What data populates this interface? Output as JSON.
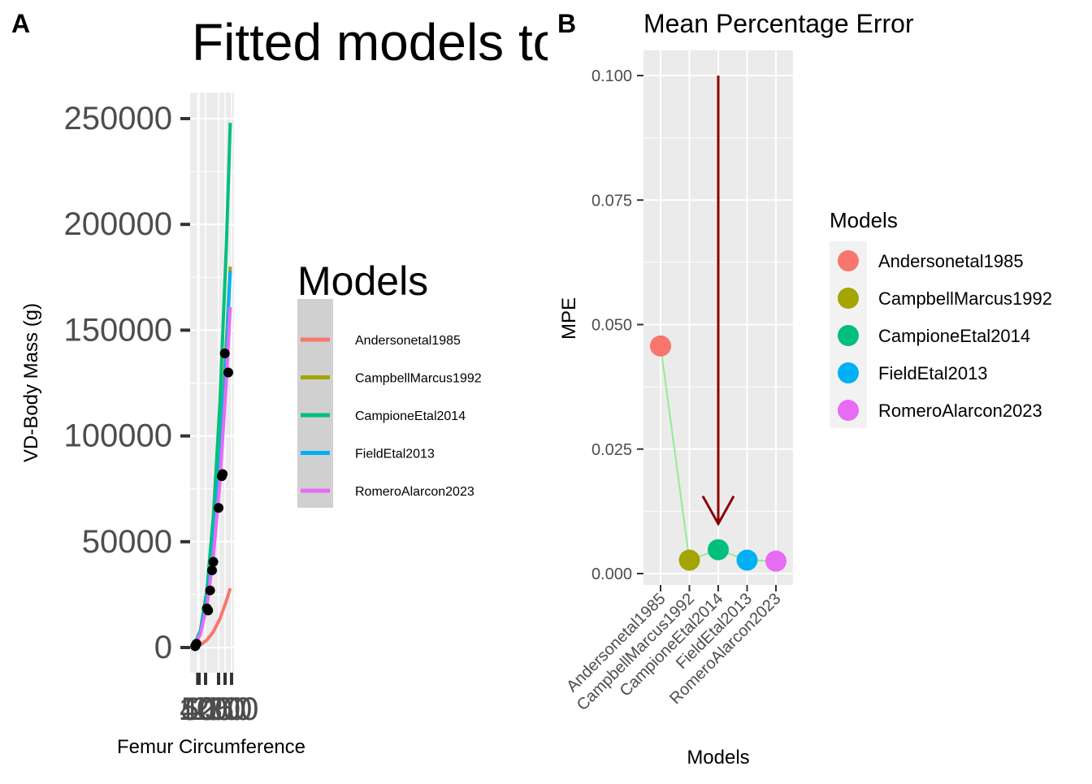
{
  "panel_labels": [
    "A",
    "B"
  ],
  "chart_data": [
    {
      "type": "line",
      "title": "Fitted models to",
      "xlabel": "Femur Circumference",
      "ylabel": "VD-Body Mass (g)",
      "xlim": [
        0,
        300
      ],
      "ylim": [
        0,
        250000
      ],
      "x_ticks": [
        40,
        50,
        100,
        200,
        250,
        300
      ],
      "x_tick_labels": [
        "40",
        "50",
        "100",
        "200",
        "250",
        "300"
      ],
      "y_ticks": [
        0,
        50000,
        100000,
        150000,
        200000,
        250000
      ],
      "y_tick_labels": [
        "0",
        "50000",
        "100000",
        "150000",
        "200000",
        "250000"
      ],
      "grid": true,
      "legend": {
        "title": "Models",
        "position": "right",
        "entries": [
          "Andersonetal1985",
          "CampbellMarcus1992",
          "CampioneEtal2014",
          "FieldEtal2013",
          "RomeroAlarcon2023"
        ]
      },
      "series": [
        {
          "name": "Andersonetal1985",
          "color": "#F8766D",
          "x": [
            10,
            60,
            110,
            160,
            210,
            260,
            290
          ],
          "y": [
            150,
            1200,
            3500,
            7500,
            13500,
            22000,
            28000
          ]
        },
        {
          "name": "CampbellMarcus1992",
          "color": "#A3A500",
          "x": [
            10,
            60,
            110,
            160,
            210,
            260,
            290
          ],
          "y": [
            800,
            7000,
            22000,
            50000,
            90000,
            145000,
            180000
          ]
        },
        {
          "name": "CampioneEtal2014",
          "color": "#00BF7D",
          "x": [
            10,
            60,
            110,
            160,
            210,
            260,
            290
          ],
          "y": [
            900,
            8000,
            27000,
            62000,
            115000,
            190000,
            248000
          ]
        },
        {
          "name": "FieldEtal2013",
          "color": "#00B0F6",
          "x": [
            10,
            60,
            110,
            160,
            210,
            260,
            290
          ],
          "y": [
            800,
            7000,
            21500,
            48000,
            87000,
            140000,
            178000
          ]
        },
        {
          "name": "RomeroAlarcon2023",
          "color": "#E76BF3",
          "x": [
            10,
            60,
            110,
            160,
            210,
            260,
            290
          ],
          "y": [
            700,
            6200,
            19500,
            43000,
            78000,
            126000,
            161000
          ]
        }
      ],
      "points": {
        "x": [
          20,
          25,
          30,
          110,
          120,
          135,
          150,
          160,
          200,
          225,
          232,
          248,
          275
        ],
        "y": [
          600,
          1200,
          1800,
          18500,
          17500,
          27000,
          36500,
          40500,
          66000,
          81000,
          82000,
          139000,
          130000
        ]
      }
    },
    {
      "type": "scatter",
      "title": "Mean Percentage Error",
      "xlabel": "Models",
      "ylabel": "MPE",
      "ylim": [
        -0.005,
        0.1025
      ],
      "y_ticks": [
        0.0,
        0.025,
        0.05,
        0.075,
        0.1
      ],
      "y_tick_labels": [
        "0.000",
        "0.025",
        "0.050",
        "0.075",
        "0.100"
      ],
      "grid": true,
      "categories": [
        "Andersonetal1985",
        "CampbellMarcus1992",
        "CampioneEtal2014",
        "FieldEtal2013",
        "RomeroAlarcon2023"
      ],
      "values": [
        0.0457,
        0.0027,
        0.0048,
        0.0027,
        0.0025
      ],
      "colors": [
        "#F8766D",
        "#A3A500",
        "#00BF7D",
        "#00B0F6",
        "#E76BF3"
      ],
      "line_color": "#90EE90",
      "arrow": {
        "category": "CampioneEtal2014",
        "from_y": 0.1,
        "to_y": 0.01,
        "color": "#8B0000"
      },
      "legend": {
        "title": "Models",
        "position": "right",
        "entries": [
          "Andersonetal1985",
          "CampbellMarcus1992",
          "CampioneEtal2014",
          "FieldEtal2013",
          "RomeroAlarcon2023"
        ]
      }
    }
  ]
}
